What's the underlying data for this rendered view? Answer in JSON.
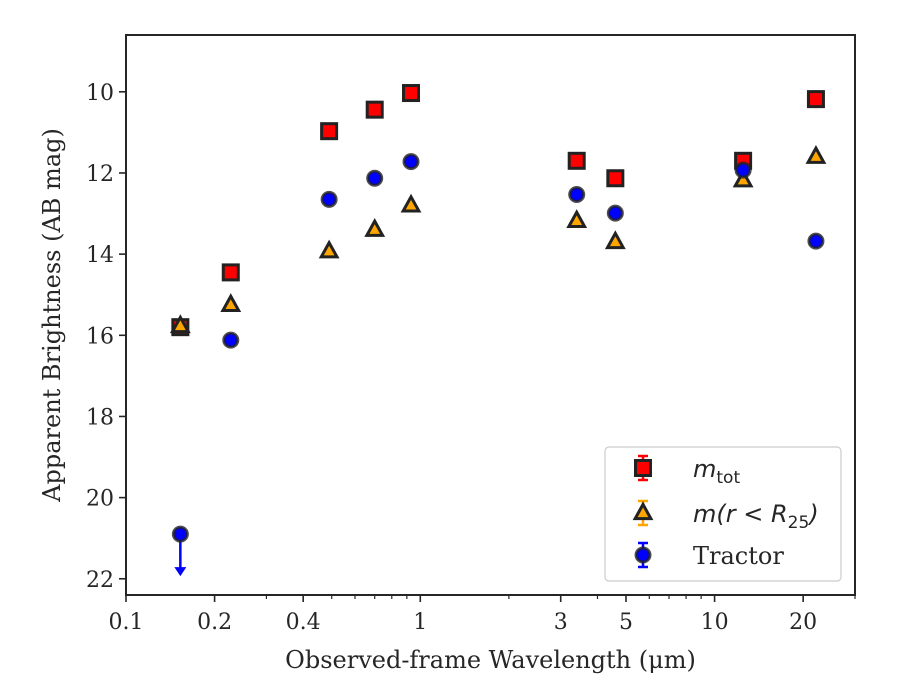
{
  "chart_data": {
    "type": "scatter",
    "xlabel": "Observed-frame Wavelength (μm)",
    "ylabel": "Apparent Brightness (AB mag)",
    "x_scale": "log",
    "xlim": [
      0.1,
      30
    ],
    "ylim": [
      22.4,
      8.6
    ],
    "y_inverted": true,
    "x_ticks": [
      {
        "value": 0.1,
        "label": "0.1"
      },
      {
        "value": 0.2,
        "label": "0.2"
      },
      {
        "value": 0.4,
        "label": "0.4"
      },
      {
        "value": 1,
        "label": "1"
      },
      {
        "value": 3,
        "label": "3"
      },
      {
        "value": 5,
        "label": "5"
      },
      {
        "value": 10,
        "label": "10"
      },
      {
        "value": 20,
        "label": "20"
      }
    ],
    "x_minor_ticks": [
      0.3,
      0.5,
      0.6,
      0.7,
      0.8,
      0.9,
      2,
      4,
      6,
      7,
      8,
      9,
      30
    ],
    "y_ticks": [
      {
        "value": 10,
        "label": "10"
      },
      {
        "value": 12,
        "label": "12"
      },
      {
        "value": 14,
        "label": "14"
      },
      {
        "value": 16,
        "label": "16"
      },
      {
        "value": 18,
        "label": "18"
      },
      {
        "value": 20,
        "label": "20"
      },
      {
        "value": 22,
        "label": "22"
      }
    ],
    "legend_position": "lower right",
    "series": [
      {
        "name": "m_tot",
        "marker": "square",
        "color": "#ff0000",
        "edge_color": "#222222",
        "errbar_color": "#ff0000",
        "x": [
          0.153,
          0.227,
          0.49,
          0.7,
          0.93,
          3.4,
          4.6,
          12.5,
          22.1
        ],
        "y": [
          15.8,
          14.45,
          10.97,
          10.44,
          10.03,
          11.7,
          12.13,
          11.7,
          10.18
        ]
      },
      {
        "name": "m(r < R_25)",
        "marker": "triangle",
        "color": "#ffa500",
        "edge_color": "#222222",
        "errbar_color": "#ffa500",
        "x": [
          0.153,
          0.227,
          0.49,
          0.7,
          0.93,
          3.4,
          4.6,
          12.5,
          22.1
        ],
        "y": [
          15.77,
          15.25,
          13.93,
          13.4,
          12.8,
          13.18,
          13.7,
          12.18,
          11.6
        ]
      },
      {
        "name": "Tractor",
        "marker": "circle",
        "color": "#0000ff",
        "edge_color": "#222222",
        "errbar_color": "#0000ff",
        "x": [
          0.153,
          0.227,
          0.49,
          0.7,
          0.93,
          3.4,
          4.6,
          12.5,
          22.1
        ],
        "y": [
          20.9,
          16.12,
          12.65,
          12.13,
          11.72,
          12.53,
          12.99,
          11.93,
          13.68
        ],
        "upper_limit": [
          true,
          false,
          false,
          false,
          false,
          false,
          false,
          false,
          false
        ]
      }
    ],
    "legend": [
      {
        "base": "m",
        "rest": "",
        "sub": "tot",
        "tail": "",
        "style": "math"
      },
      {
        "base": "m",
        "rest": "(r < R",
        "sub": "25",
        "tail": ")",
        "style": "math"
      },
      {
        "base": "Tractor",
        "rest": "",
        "sub": "",
        "tail": "",
        "style": "text"
      }
    ]
  }
}
